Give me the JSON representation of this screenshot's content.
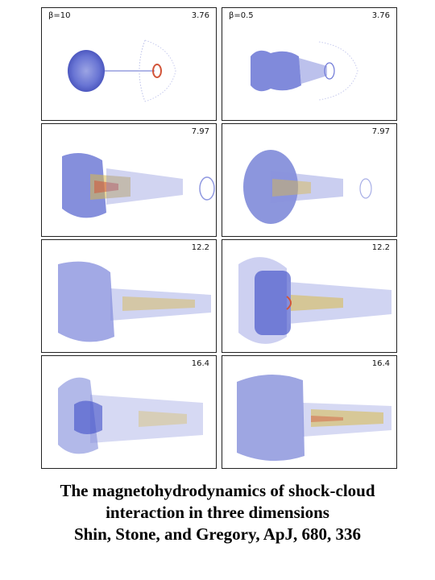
{
  "figure": {
    "columns": [
      {
        "beta_label": "β=10"
      },
      {
        "beta_label": "β=0.5"
      }
    ],
    "rows": [
      {
        "time": "3.76"
      },
      {
        "time": "7.97"
      },
      {
        "time": "12.2"
      },
      {
        "time": "16.4"
      }
    ]
  },
  "caption": {
    "line1": "The magnetohydrodynamics of shock-cloud",
    "line2": "interaction in three dimensions",
    "line3": "Shin, Stone, and Gregory, ApJ, 680, 336"
  },
  "colors": {
    "density_blue": "#3f4fc8",
    "density_light": "#9aa3e6",
    "hot_red": "#d2553a",
    "hot_yellow": "#d9b94a"
  }
}
